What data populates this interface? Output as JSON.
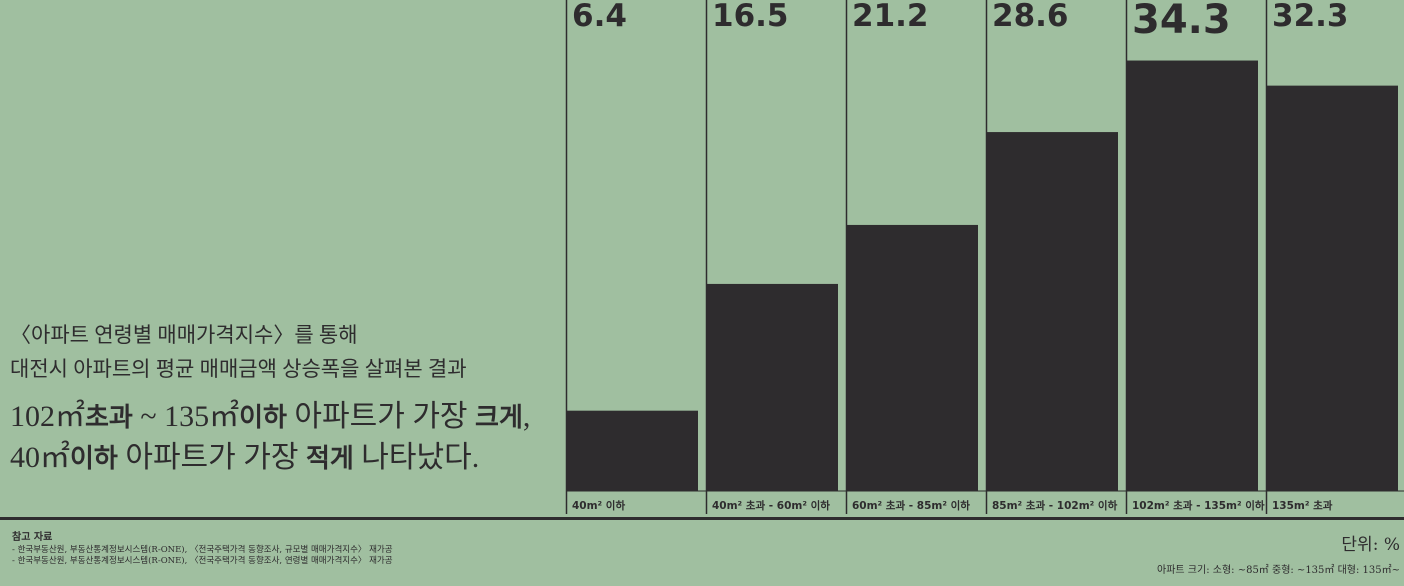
{
  "intro": {
    "line1": "〈아파트 연령별 매매가격지수〉를 통해",
    "line2": "대전시 아파트의 평균 매매금액 상승폭을 살펴본 결과"
  },
  "headline": {
    "l1_part1": "102㎡",
    "l1_part2": "초과",
    "l1_part3": " ~ 135㎡",
    "l1_part4": "이하",
    "l1_part5": " 아파트가 가장 ",
    "l1_part6": "크게",
    "l1_part7": ",",
    "l2_part1": "40㎡",
    "l2_part2": "이하",
    "l2_part3": " 아파트가 가장 ",
    "l2_part4": "적게",
    "l2_part5": " 나타났다."
  },
  "chart_data": {
    "type": "bar",
    "categories": [
      "40m² 이하",
      "40m² 초과 - 60m² 이하",
      "60m² 초과 - 85m² 이하",
      "85m² 초과 - 102m² 이하",
      "102m² 초과 - 135m² 이하",
      "135m² 초과"
    ],
    "values": [
      6.4,
      16.5,
      21.2,
      28.6,
      34.3,
      32.3
    ],
    "value_labels": [
      "6.4",
      "16.5",
      "21.2",
      "28.6",
      "34.3",
      "32.3"
    ],
    "highlight_index": 4,
    "bar_color": "#2e2c2e",
    "background_color": "#a0bfa0"
  },
  "footer": {
    "refs_title": "참고 자료",
    "ref1": "- 한국부동산원, 부동산통계정보시스템(R-ONE), 〈전국주택가격 동향조사, 규모별 매매가격지수〉 재가공",
    "ref2": "- 한국부동산원, 부동산통계정보시스템(R-ONE), 〈전국주택가격 동향조사, 연령별 매매가격지수〉 재가공",
    "unit": "단위: %",
    "size_legend": "아파트 크기: 소형: ~85㎡  중형: ~135㎡  대형: 135㎡~"
  }
}
